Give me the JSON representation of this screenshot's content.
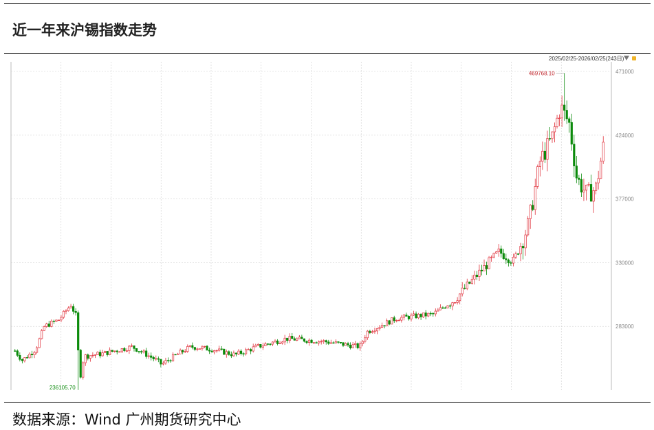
{
  "title": "近一年来沪锡指数走势",
  "source": "数据来源：Wind  广州期货研究中心",
  "date_range": "2025/02/25-2026/02/25(243日)",
  "colors": {
    "up": "#e0313b",
    "down": "#0a8a0a",
    "grid": "#cfcfcf",
    "axis_text": "#888888"
  },
  "chart_data": {
    "type": "candlestick",
    "title": "",
    "xlabel": "",
    "ylabel": "",
    "ylim": [
      236000,
      471000
    ],
    "y_ticks": [
      283000,
      330000,
      377000,
      424000,
      471000
    ],
    "max_label": "469768.10",
    "max_value": 469768.1,
    "min_label": "236105.70",
    "min_value": 236105.7,
    "grid": true,
    "n_days": 243
  }
}
